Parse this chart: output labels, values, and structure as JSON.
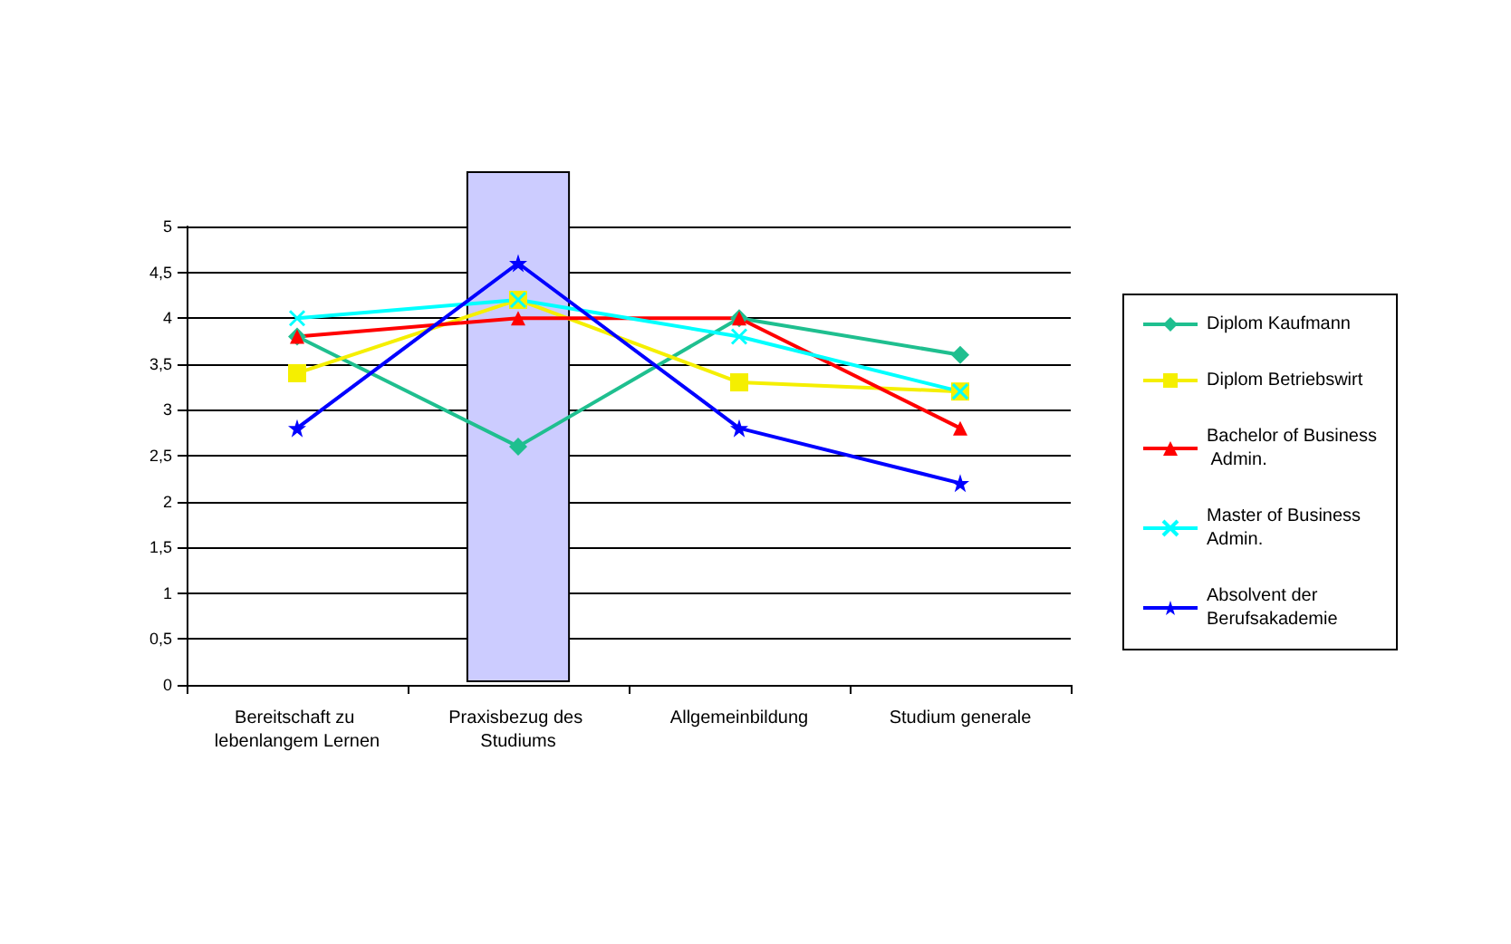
{
  "chart_data": {
    "type": "line",
    "categories": [
      "Bereitschaft zu lebenlangem Lernen",
      "Praxisbezug des Studiums",
      "Allgemeinbildung",
      "Studium generale"
    ],
    "series": [
      {
        "name": "Diplom Kaufmann",
        "color": "#1fbf8f",
        "marker": "diamond",
        "values": [
          3.8,
          2.6,
          4,
          3.6
        ]
      },
      {
        "name": "Diplom Betriebswirt",
        "color": "#f5ef00",
        "marker": "square",
        "values": [
          3.4,
          4.2,
          3.3,
          3.2
        ]
      },
      {
        "name": "Bachelor of Business Admin.",
        "color": "#ff0000",
        "marker": "triangle",
        "values": [
          3.8,
          4,
          4,
          2.8
        ]
      },
      {
        "name": "Master of Business Admin.",
        "color": "#00ffff",
        "marker": "cross",
        "values": [
          4,
          4.2,
          3.8,
          3.2
        ]
      },
      {
        "name": "Absolvent der Berufsakademie",
        "color": "#0000ff",
        "marker": "star",
        "values": [
          2.8,
          4.6,
          2.8,
          2.2
        ]
      }
    ],
    "ylim": [
      0,
      5
    ],
    "yticks": [
      0,
      {
        "value": 0.5,
        "label": "0,5"
      },
      1,
      {
        "value": 1.5,
        "label": "1,5"
      },
      2,
      {
        "value": 2.5,
        "label": "2,5"
      },
      3,
      {
        "value": 3.5,
        "label": "3,5"
      },
      4,
      {
        "value": 4.5,
        "label": "4,5"
      },
      5
    ],
    "bands": [
      {
        "axis": "x",
        "from": "Praxisbezug des Studiums",
        "to": "Praxisbezug des Studiums",
        "color": "#ccccff"
      }
    ],
    "grid": "y",
    "legend": "right"
  }
}
